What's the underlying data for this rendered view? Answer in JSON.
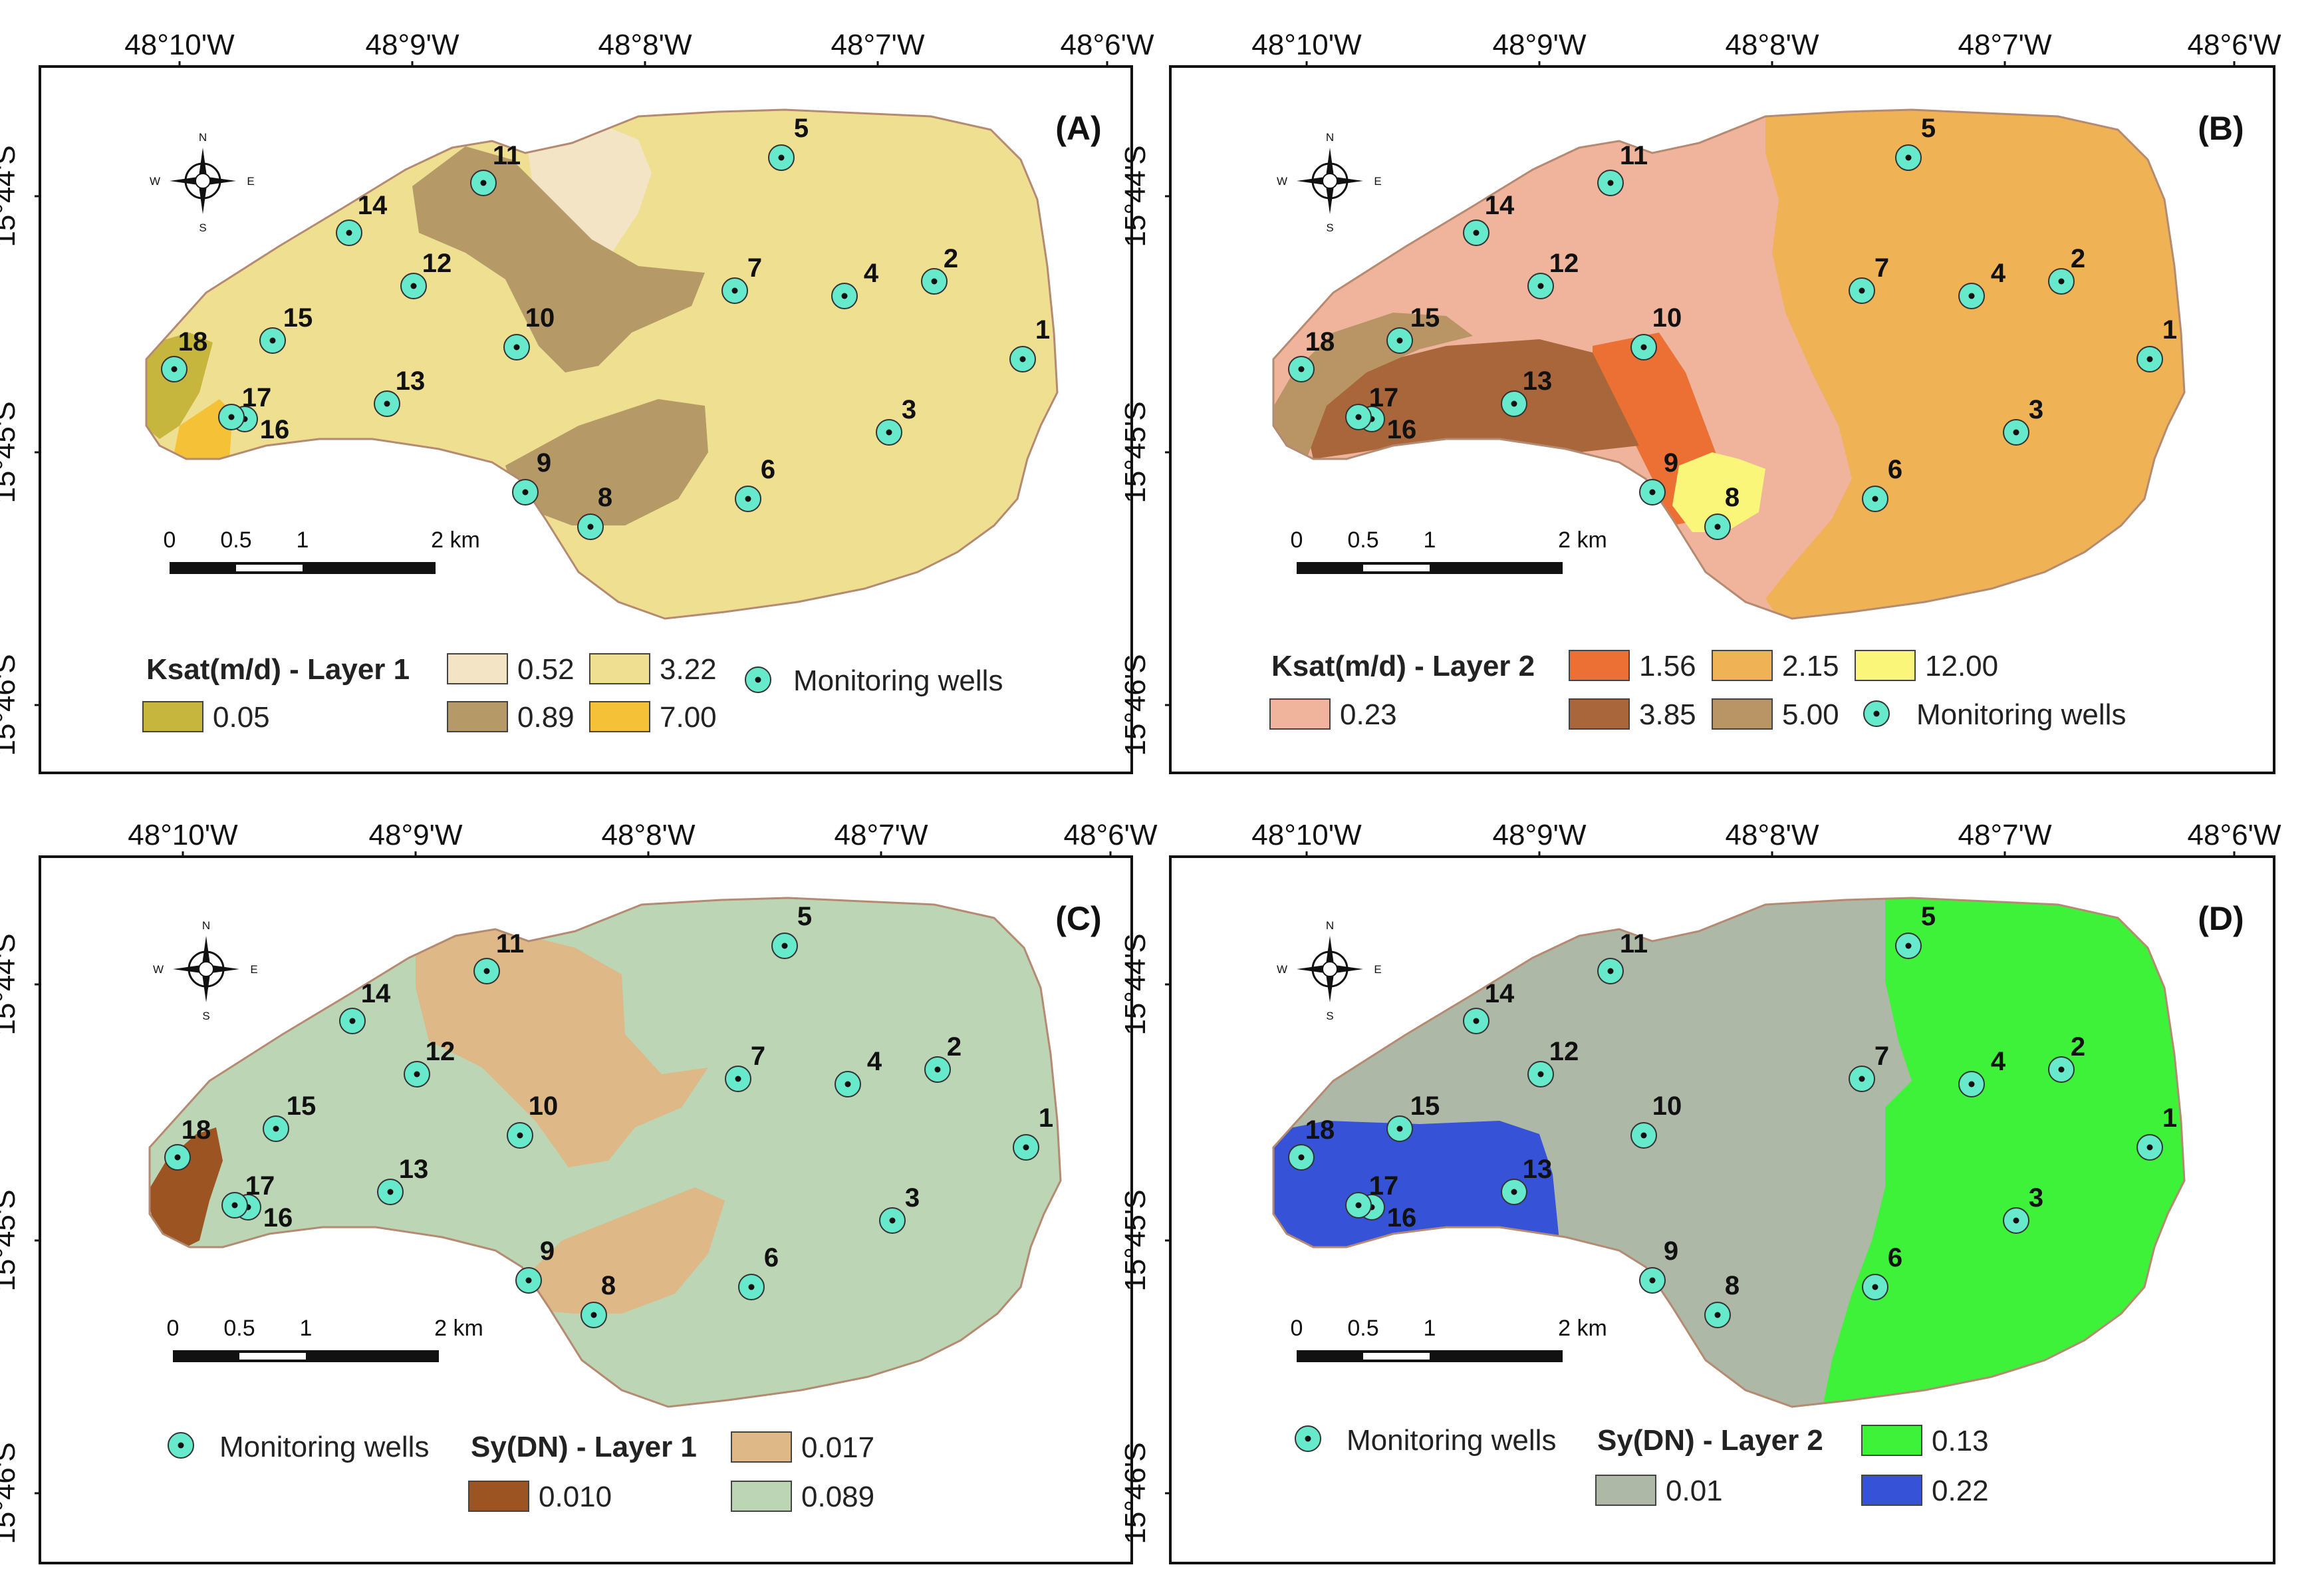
{
  "figure": {
    "lon_ticks": [
      "48°10'W",
      "48°9'W",
      "48°8'W",
      "48°7'W",
      "48°6'W"
    ],
    "lat_ticks": [
      "15°44'S",
      "15°45'S",
      "15°46'S"
    ],
    "scale_bar": {
      "ticks": [
        "0",
        "0.5",
        "1",
        "2 km"
      ]
    },
    "compass": {
      "n": "N",
      "s": "S",
      "e": "E",
      "w": "W"
    },
    "wells_legend_label": "Monitoring wells",
    "wells": [
      "1",
      "2",
      "3",
      "4",
      "5",
      "6",
      "7",
      "8",
      "9",
      "10",
      "11",
      "12",
      "13",
      "14",
      "15",
      "16",
      "17",
      "18"
    ],
    "colors": {
      "frame": "#111111",
      "well_fill": "#67e9cc",
      "well_dot": "#111111",
      "boundary": "#b58a72"
    }
  },
  "panels": [
    {
      "id": "A",
      "label": "(A)",
      "legend_title": "Ksat(m/d) - Layer 1",
      "classes": [
        {
          "value": "0.05",
          "color": "#c7b63e"
        },
        {
          "value": "0.52",
          "color": "#f2e4c4"
        },
        {
          "value": "0.89",
          "color": "#b59a68"
        },
        {
          "value": "3.22",
          "color": "#efdf91"
        },
        {
          "value": "7.00",
          "color": "#f5c237"
        }
      ]
    },
    {
      "id": "B",
      "label": "(B)",
      "legend_title": "Ksat(m/d) - Layer 2",
      "classes": [
        {
          "value": "0.23",
          "color": "#efb49b"
        },
        {
          "value": "1.56",
          "color": "#ec7034"
        },
        {
          "value": "2.15",
          "color": "#efb356"
        },
        {
          "value": "3.85",
          "color": "#a8663a"
        },
        {
          "value": "5.00",
          "color": "#b99566"
        },
        {
          "value": "12.00",
          "color": "#faf67a"
        }
      ]
    },
    {
      "id": "C",
      "label": "(C)",
      "legend_title": "Sy(DN) - Layer 1",
      "classes": [
        {
          "value": "0.010",
          "color": "#9c5423"
        },
        {
          "value": "0.017",
          "color": "#deb886"
        },
        {
          "value": "0.089",
          "color": "#bcd5b5"
        }
      ]
    },
    {
      "id": "D",
      "label": "(D)",
      "legend_title": "Sy(DN) - Layer 2",
      "classes": [
        {
          "value": "0.01",
          "color": "#aeb8a6"
        },
        {
          "value": "0.13",
          "color": "#3ef23a"
        },
        {
          "value": "0.22",
          "color": "#3653d8"
        }
      ]
    }
  ]
}
